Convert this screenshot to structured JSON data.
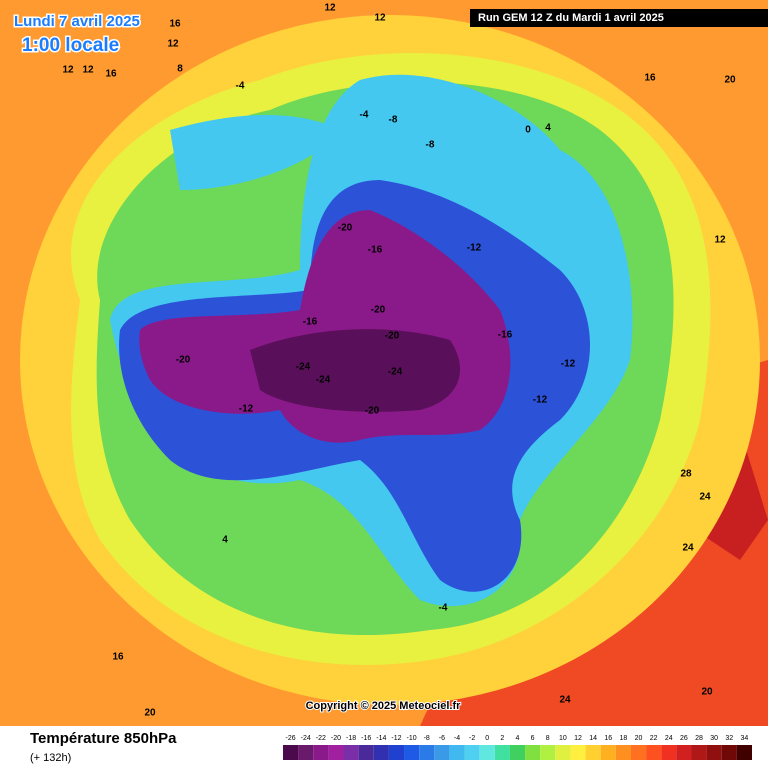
{
  "header": {
    "date": "Lundi 7 avril 2025",
    "local_time": "1:00 locale",
    "run": "Run GEM 12 Z du Mardi 1 avril 2025"
  },
  "footer": {
    "title": "Température 850hPa",
    "lead": "(+ 132h)",
    "copyright": "Copyright © 2025 Meteociel.fr"
  },
  "scale": {
    "ticks": [
      -26,
      -24,
      -22,
      -20,
      -18,
      -16,
      -14,
      -12,
      -10,
      -8,
      -6,
      -4,
      -2,
      0,
      2,
      4,
      6,
      8,
      10,
      12,
      14,
      16,
      18,
      20,
      22,
      24,
      26,
      28,
      30,
      32,
      34
    ],
    "colors": [
      "#4b0a4b",
      "#6a1a6a",
      "#8a1a8a",
      "#a020a0",
      "#7a2fa8",
      "#4a2a9a",
      "#3030b0",
      "#2040d0",
      "#1e5ae6",
      "#2a7ae8",
      "#3a9ae8",
      "#40b8f0",
      "#50d0f0",
      "#60e8e0",
      "#40e0a0",
      "#40d060",
      "#80e040",
      "#b0f040",
      "#e0f040",
      "#fff040",
      "#ffd030",
      "#ffb020",
      "#ff9020",
      "#ff7020",
      "#ff5020",
      "#f03020",
      "#d02020",
      "#b01818",
      "#901010",
      "#700808",
      "#400000"
    ]
  },
  "contour_labels": [
    16,
    12,
    12,
    12,
    12,
    12,
    16,
    8,
    -4,
    -4,
    -8,
    -8,
    0,
    4,
    -20,
    -16,
    -12,
    -16,
    -20,
    -20,
    -20,
    -24,
    -24,
    -24,
    -12,
    -20,
    -16,
    -12,
    -12,
    28,
    24,
    24,
    20,
    24,
    20,
    16,
    4,
    -4,
    20,
    16,
    12
  ]
}
